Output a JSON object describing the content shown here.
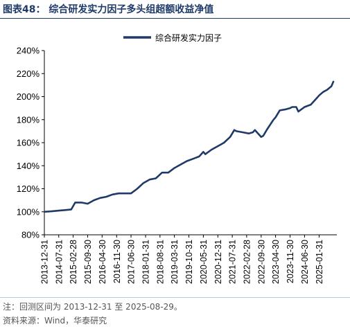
{
  "figure": {
    "title": "图表48：  综合研发实力因子多头组超额收益净值",
    "note": "注：回测区间为 2013-12-31 至 2025-08-29。",
    "source": "资料来源：Wind，华泰研究",
    "line_color": "#1f3a68"
  },
  "chart_data": {
    "type": "line",
    "title": "",
    "xlabel": "",
    "ylabel": "",
    "legend": "top-center",
    "grid": false,
    "ylim": [
      80,
      240
    ],
    "y_ticks": [
      "80%",
      "100%",
      "120%",
      "140%",
      "160%",
      "180%",
      "200%",
      "220%",
      "240%"
    ],
    "x_ticks": [
      "2013-12-31",
      "2014-07-31",
      "2015-02-28",
      "2015-09-30",
      "2016-04-30",
      "2016-11-30",
      "2017-06-30",
      "2018-01-31",
      "2018-08-31",
      "2019-03-31",
      "2019-10-31",
      "2020-05-31",
      "2020-12-31",
      "2021-07-31",
      "2022-02-28",
      "2022-09-30",
      "2023-04-30",
      "2023-11-30",
      "2024-06-30",
      "2025-01-31"
    ],
    "series": [
      {
        "name": "综合研发实力因子",
        "x": [
          "2013-12-31",
          "2014-04-30",
          "2014-07-31",
          "2014-10-31",
          "2015-01-31",
          "2015-03-31",
          "2015-06-30",
          "2015-09-30",
          "2015-12-31",
          "2016-03-31",
          "2016-06-30",
          "2016-09-30",
          "2016-12-31",
          "2017-03-31",
          "2017-06-30",
          "2017-09-30",
          "2017-12-31",
          "2018-03-31",
          "2018-06-30",
          "2018-09-30",
          "2018-12-31",
          "2019-03-31",
          "2019-06-30",
          "2019-09-30",
          "2019-12-31",
          "2020-03-31",
          "2020-05-31",
          "2020-06-30",
          "2020-09-30",
          "2020-12-31",
          "2021-03-31",
          "2021-06-30",
          "2021-08-31",
          "2021-09-30",
          "2021-12-31",
          "2022-03-31",
          "2022-05-31",
          "2022-06-30",
          "2022-09-30",
          "2022-10-31",
          "2022-12-31",
          "2023-03-31",
          "2023-04-30",
          "2023-06-30",
          "2023-09-30",
          "2023-11-30",
          "2023-12-31",
          "2024-02-29",
          "2024-03-31",
          "2024-06-30",
          "2024-09-30",
          "2024-12-31",
          "2025-01-31",
          "2025-03-31",
          "2025-05-31",
          "2025-07-31",
          "2025-08-29"
        ],
        "y": [
          100,
          100.5,
          101,
          101.5,
          102,
          108,
          108,
          107,
          110,
          112,
          113,
          115,
          116,
          116,
          116,
          120,
          125,
          128,
          129,
          134,
          134,
          138,
          141,
          144,
          146,
          148,
          152,
          150,
          154,
          157,
          160,
          165,
          171,
          170,
          169,
          168,
          169,
          171,
          165,
          166,
          172,
          180,
          182,
          188,
          189,
          190,
          191,
          191,
          187,
          191,
          193,
          199,
          201,
          204,
          206,
          209,
          213
        ]
      }
    ]
  }
}
